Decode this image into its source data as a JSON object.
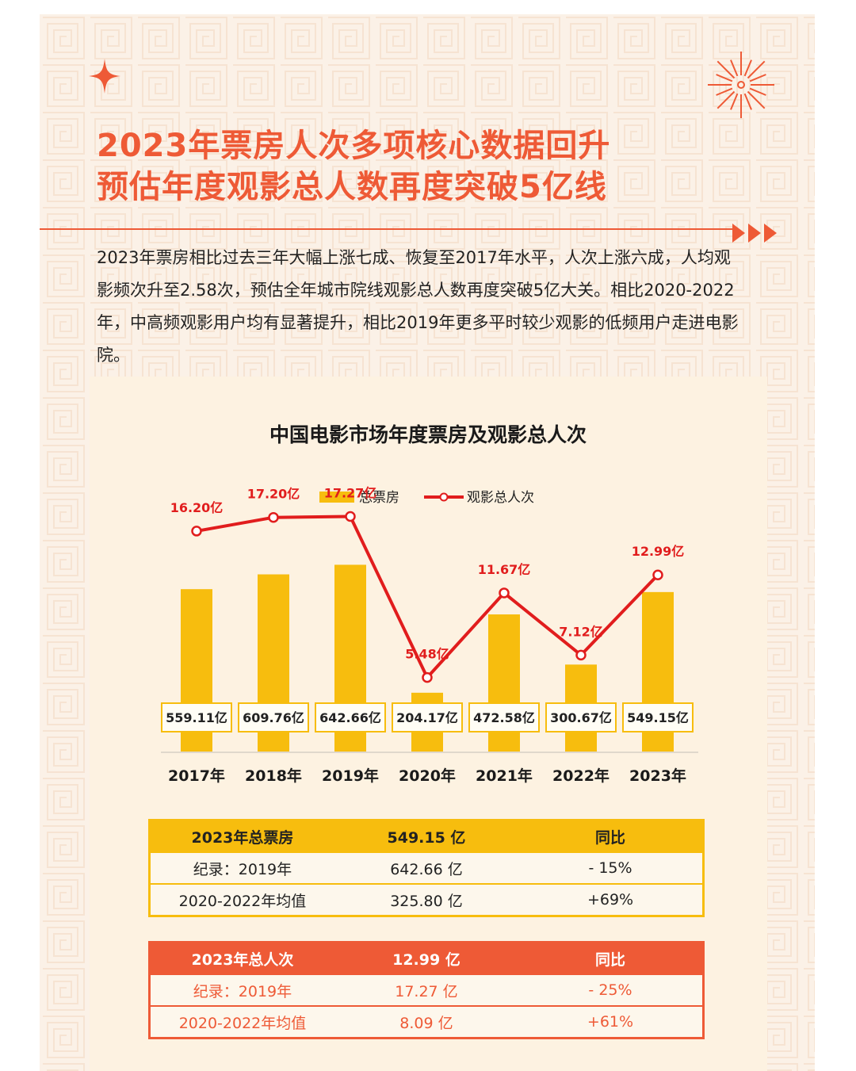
{
  "header": {
    "title_line1": "2023年票房人次多项核心数据回升",
    "title_line2": "预估年度观影总人数再度突破5亿线"
  },
  "body": {
    "paragraph": "2023年票房相比过去三年大幅上涨七成、恢复至2017年水平，人次上涨六成，人均观影频次升至2.58次，预估全年城市院线观影总人数再度突破5亿大关。相比2020-2022年，中高频观影用户均有显著提升，相比2019年更多平时较少观影的低频用户走进电影院。"
  },
  "colors": {
    "accent": "#ee5a36",
    "bar": "#f7bd0e",
    "line": "#e11d1d",
    "background": "#fbf1e7"
  },
  "icons": [
    "sparkle-icon",
    "firework-icon",
    "triple-arrow-icon"
  ],
  "chart_data": {
    "type": "bar",
    "title": "中国电影市场年度票房及观影总人次",
    "legend_position": "top-center",
    "categories": [
      "2017年",
      "2018年",
      "2019年",
      "2020年",
      "2021年",
      "2022年",
      "2023年"
    ],
    "series": [
      {
        "name": "总票房",
        "type": "bar",
        "values": [
          559.11,
          609.76,
          642.66,
          204.17,
          472.58,
          300.67,
          549.15
        ],
        "labels": [
          "559.11亿",
          "609.76亿",
          "642.66亿",
          "204.17亿",
          "472.58亿",
          "300.67亿",
          "549.15亿"
        ]
      },
      {
        "name": "观影总人次",
        "type": "line",
        "values": [
          16.2,
          17.2,
          17.27,
          5.48,
          11.67,
          7.12,
          12.99
        ],
        "labels": [
          "16.20亿",
          "17.20亿",
          "17.27亿",
          "5.48亿",
          "11.67亿",
          "7.12亿",
          "12.99亿"
        ]
      }
    ]
  },
  "table_box_office": {
    "header": [
      "2023年总票房",
      "549.15 亿",
      "同比"
    ],
    "rows": [
      [
        "纪录：2019年",
        "642.66 亿",
        "- 15%"
      ],
      [
        "2020-2022年均值",
        "325.80 亿",
        "+69%"
      ]
    ]
  },
  "table_admissions": {
    "header": [
      "2023年总人次",
      "12.99 亿",
      "同比"
    ],
    "rows": [
      [
        "纪录：2019年",
        "17.27 亿",
        "- 25%"
      ],
      [
        "2020-2022年均值",
        "8.09 亿",
        "+61%"
      ]
    ]
  }
}
